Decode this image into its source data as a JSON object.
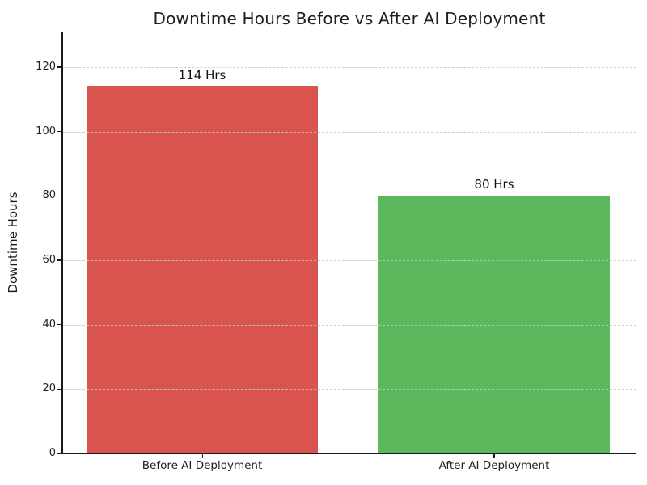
{
  "chart_data": {
    "type": "bar",
    "title": "Downtime Hours Before vs After AI Deployment",
    "ylabel": "Downtime Hours",
    "xlabel": "",
    "categories": [
      "Before AI Deployment",
      "After AI Deployment"
    ],
    "values": [
      114,
      80
    ],
    "bar_labels": [
      "114 Hrs",
      "80 Hrs"
    ],
    "bar_colors": [
      "#d9534f",
      "#5cb85c"
    ],
    "yticks": [
      0,
      20,
      40,
      60,
      80,
      100,
      120
    ],
    "ylim": [
      0,
      131
    ],
    "grid": {
      "axis": "y",
      "style": "dashed",
      "color": "#c8c8c8"
    },
    "legend_position": "none"
  },
  "colors": {
    "background": "#ffffff",
    "title": "#1f1f1f",
    "axis": "#1a1a1a",
    "tick_label": "#1f1f1f",
    "grid": "#c8c8c8"
  }
}
